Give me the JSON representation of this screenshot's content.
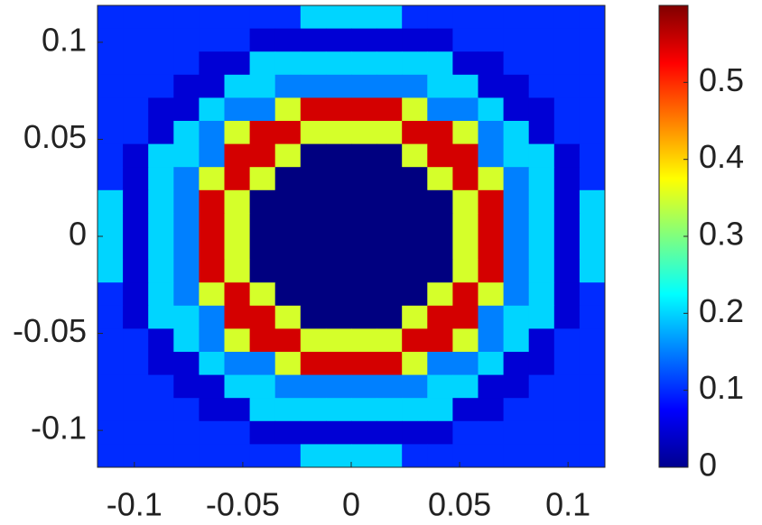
{
  "chart_data": {
    "type": "heatmap",
    "colormap": "jet",
    "xlim": [
      -0.117,
      0.117
    ],
    "ylim": [
      -0.119,
      0.119
    ],
    "xticks": [
      -0.1,
      -0.05,
      0,
      0.05,
      0.1
    ],
    "yticks": [
      -0.1,
      -0.05,
      0,
      0.05,
      0.1
    ],
    "clim": [
      0,
      0.6
    ],
    "cticks": [
      0,
      0.1,
      0.2,
      0.3,
      0.4,
      0.5
    ],
    "z": [
      [
        0.1,
        0.1,
        0.1,
        0.1,
        0.1,
        0.1,
        0.1,
        0.1,
        0.2,
        0.2,
        0.2,
        0.2,
        0.1,
        0.1,
        0.1,
        0.1,
        0.1,
        0.1,
        0.1,
        0.1
      ],
      [
        0.1,
        0.1,
        0.1,
        0.1,
        0.1,
        0.1,
        0.05,
        0.05,
        0.05,
        0.05,
        0.05,
        0.05,
        0.05,
        0.05,
        0.1,
        0.1,
        0.1,
        0.1,
        0.1,
        0.1
      ],
      [
        0.1,
        0.1,
        0.1,
        0.1,
        0.05,
        0.05,
        0.2,
        0.2,
        0.2,
        0.2,
        0.2,
        0.2,
        0.2,
        0.2,
        0.05,
        0.05,
        0.1,
        0.1,
        0.1,
        0.1
      ],
      [
        0.1,
        0.1,
        0.1,
        0.05,
        0.05,
        0.2,
        0.2,
        0.15,
        0.15,
        0.15,
        0.15,
        0.15,
        0.15,
        0.2,
        0.2,
        0.05,
        0.05,
        0.1,
        0.1,
        0.1
      ],
      [
        0.1,
        0.1,
        0.05,
        0.05,
        0.2,
        0.15,
        0.15,
        0.35,
        0.55,
        0.55,
        0.55,
        0.55,
        0.35,
        0.15,
        0.15,
        0.2,
        0.05,
        0.05,
        0.1,
        0.1
      ],
      [
        0.1,
        0.1,
        0.05,
        0.2,
        0.15,
        0.35,
        0.55,
        0.55,
        0.35,
        0.35,
        0.35,
        0.35,
        0.55,
        0.55,
        0.35,
        0.15,
        0.2,
        0.05,
        0.1,
        0.1
      ],
      [
        0.1,
        0.05,
        0.2,
        0.2,
        0.15,
        0.55,
        0.55,
        0.35,
        0,
        0,
        0,
        0,
        0.35,
        0.55,
        0.55,
        0.15,
        0.2,
        0.2,
        0.05,
        0.1
      ],
      [
        0.1,
        0.05,
        0.2,
        0.15,
        0.35,
        0.55,
        0.35,
        0,
        0,
        0,
        0,
        0,
        0,
        0.35,
        0.55,
        0.35,
        0.15,
        0.2,
        0.05,
        0.1
      ],
      [
        0.2,
        0.05,
        0.2,
        0.15,
        0.55,
        0.35,
        0,
        0,
        0,
        0,
        0,
        0,
        0,
        0,
        0.35,
        0.55,
        0.15,
        0.2,
        0.05,
        0.2
      ],
      [
        0.2,
        0.05,
        0.2,
        0.15,
        0.55,
        0.35,
        0,
        0,
        0,
        0,
        0,
        0,
        0,
        0,
        0.35,
        0.55,
        0.15,
        0.2,
        0.05,
        0.2
      ],
      [
        0.2,
        0.05,
        0.2,
        0.15,
        0.55,
        0.35,
        0,
        0,
        0,
        0,
        0,
        0,
        0,
        0,
        0.35,
        0.55,
        0.15,
        0.2,
        0.05,
        0.2
      ],
      [
        0.2,
        0.05,
        0.2,
        0.15,
        0.55,
        0.35,
        0,
        0,
        0,
        0,
        0,
        0,
        0,
        0,
        0.35,
        0.55,
        0.15,
        0.2,
        0.05,
        0.2
      ],
      [
        0.1,
        0.05,
        0.2,
        0.15,
        0.35,
        0.55,
        0.35,
        0,
        0,
        0,
        0,
        0,
        0,
        0.35,
        0.55,
        0.35,
        0.15,
        0.2,
        0.05,
        0.1
      ],
      [
        0.1,
        0.05,
        0.2,
        0.2,
        0.15,
        0.55,
        0.55,
        0.35,
        0,
        0,
        0,
        0,
        0.35,
        0.55,
        0.55,
        0.15,
        0.2,
        0.2,
        0.05,
        0.1
      ],
      [
        0.1,
        0.1,
        0.05,
        0.2,
        0.15,
        0.35,
        0.55,
        0.55,
        0.35,
        0.35,
        0.35,
        0.35,
        0.55,
        0.55,
        0.35,
        0.15,
        0.2,
        0.05,
        0.1,
        0.1
      ],
      [
        0.1,
        0.1,
        0.05,
        0.05,
        0.2,
        0.15,
        0.15,
        0.35,
        0.55,
        0.55,
        0.55,
        0.55,
        0.35,
        0.15,
        0.15,
        0.2,
        0.05,
        0.05,
        0.1,
        0.1
      ],
      [
        0.1,
        0.1,
        0.1,
        0.05,
        0.05,
        0.2,
        0.2,
        0.15,
        0.15,
        0.15,
        0.15,
        0.15,
        0.15,
        0.2,
        0.2,
        0.05,
        0.05,
        0.1,
        0.1,
        0.1
      ],
      [
        0.1,
        0.1,
        0.1,
        0.1,
        0.05,
        0.05,
        0.2,
        0.2,
        0.2,
        0.2,
        0.2,
        0.2,
        0.2,
        0.2,
        0.05,
        0.05,
        0.1,
        0.1,
        0.1,
        0.1
      ],
      [
        0.1,
        0.1,
        0.1,
        0.1,
        0.1,
        0.1,
        0.05,
        0.05,
        0.05,
        0.05,
        0.05,
        0.05,
        0.05,
        0.05,
        0.1,
        0.1,
        0.1,
        0.1,
        0.1,
        0.1
      ],
      [
        0.1,
        0.1,
        0.1,
        0.1,
        0.1,
        0.1,
        0.1,
        0.1,
        0.2,
        0.2,
        0.2,
        0.2,
        0.1,
        0.1,
        0.1,
        0.1,
        0.1,
        0.1,
        0.1,
        0.1
      ]
    ]
  }
}
